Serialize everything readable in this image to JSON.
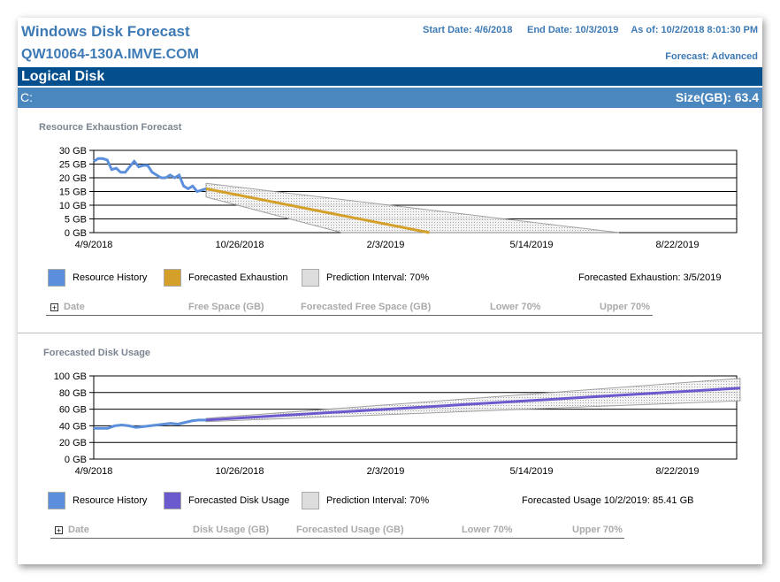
{
  "header": {
    "title": "Windows Disk Forecast",
    "host": "QW10064-130A.IMVE.COM",
    "start": "Start Date: 4/6/2018",
    "end": "End Date: 10/3/2019",
    "asof": "As of: 10/2/2018 8:01:30 PM",
    "forecast": "Forecast: Advanced"
  },
  "section_bar": "Logical Disk",
  "disk": {
    "name": "C:",
    "size": "Size(GB): 63.4"
  },
  "colors": {
    "history": "#5b8fdc",
    "exhaustion": "#d4a02a",
    "usage": "#6a5acd",
    "band": "#dddddd"
  },
  "chart_data": [
    {
      "type": "line",
      "title": "Resource Exhaustion Forecast",
      "ylim": [
        0,
        30
      ],
      "yticks": [
        "0 GB",
        "5 GB",
        "10 GB",
        "15 GB",
        "20 GB",
        "25 GB",
        "30 GB"
      ],
      "yvals": [
        0,
        5,
        10,
        15,
        20,
        25,
        30
      ],
      "xticks": [
        "4/9/2018",
        "10/26/2018",
        "2/3/2019",
        "5/14/2019",
        "8/22/2019"
      ],
      "history": [
        26,
        27,
        27,
        26.5,
        23,
        23.5,
        22,
        22,
        24,
        26,
        24,
        24.5,
        24.5,
        22,
        21,
        20,
        20,
        21,
        20,
        21,
        17,
        16,
        17,
        15,
        15.5,
        16
      ],
      "forecast": {
        "start_tick": 0.77,
        "start": 16,
        "end_tick": 2.3,
        "end": 0
      },
      "band": {
        "upper": [
          [
            0.77,
            18
          ],
          [
            3.6,
            0
          ]
        ],
        "lower": [
          [
            0.77,
            13
          ],
          [
            1.7,
            0
          ]
        ]
      },
      "legend": [
        "Resource History",
        "Forecasted Exhaustion",
        "Prediction Interval: 70%"
      ],
      "summary": "Forecasted Exhaustion: 3/5/2019",
      "columns": [
        "Date",
        "Free Space (GB)",
        "Forecasted Free Space (GB)",
        "Lower 70%",
        "Upper 70%"
      ]
    },
    {
      "type": "line",
      "title": "Forecasted Disk Usage",
      "ylim": [
        0,
        100
      ],
      "yticks": [
        "0 GB",
        "20 GB",
        "40 GB",
        "60 GB",
        "80 GB",
        "100 GB"
      ],
      "yvals": [
        0,
        20,
        40,
        60,
        80,
        100
      ],
      "xticks": [
        "4/9/2018",
        "10/26/2018",
        "2/3/2019",
        "5/14/2019",
        "8/22/2019"
      ],
      "history": [
        37,
        37,
        37,
        40,
        41,
        40,
        38,
        39,
        40,
        41,
        42,
        43,
        42,
        44,
        46,
        47,
        47
      ],
      "forecast": {
        "start_tick": 0.77,
        "start": 47,
        "end_tick": 4.43,
        "end": 85.41
      },
      "band": {
        "upper": [
          [
            0.77,
            49
          ],
          [
            4.43,
            97
          ]
        ],
        "lower": [
          [
            0.77,
            45
          ],
          [
            4.43,
            70
          ]
        ]
      },
      "legend": [
        "Resource History",
        "Forecasted Disk Usage",
        "Prediction Interval: 70%"
      ],
      "summary": "Forecasted Usage 10/2/2019: 85.41 GB",
      "columns": [
        "Date",
        "Disk Usage (GB)",
        "Forecasted Usage (GB)",
        "Lower 70%",
        "Upper 70%"
      ]
    }
  ]
}
